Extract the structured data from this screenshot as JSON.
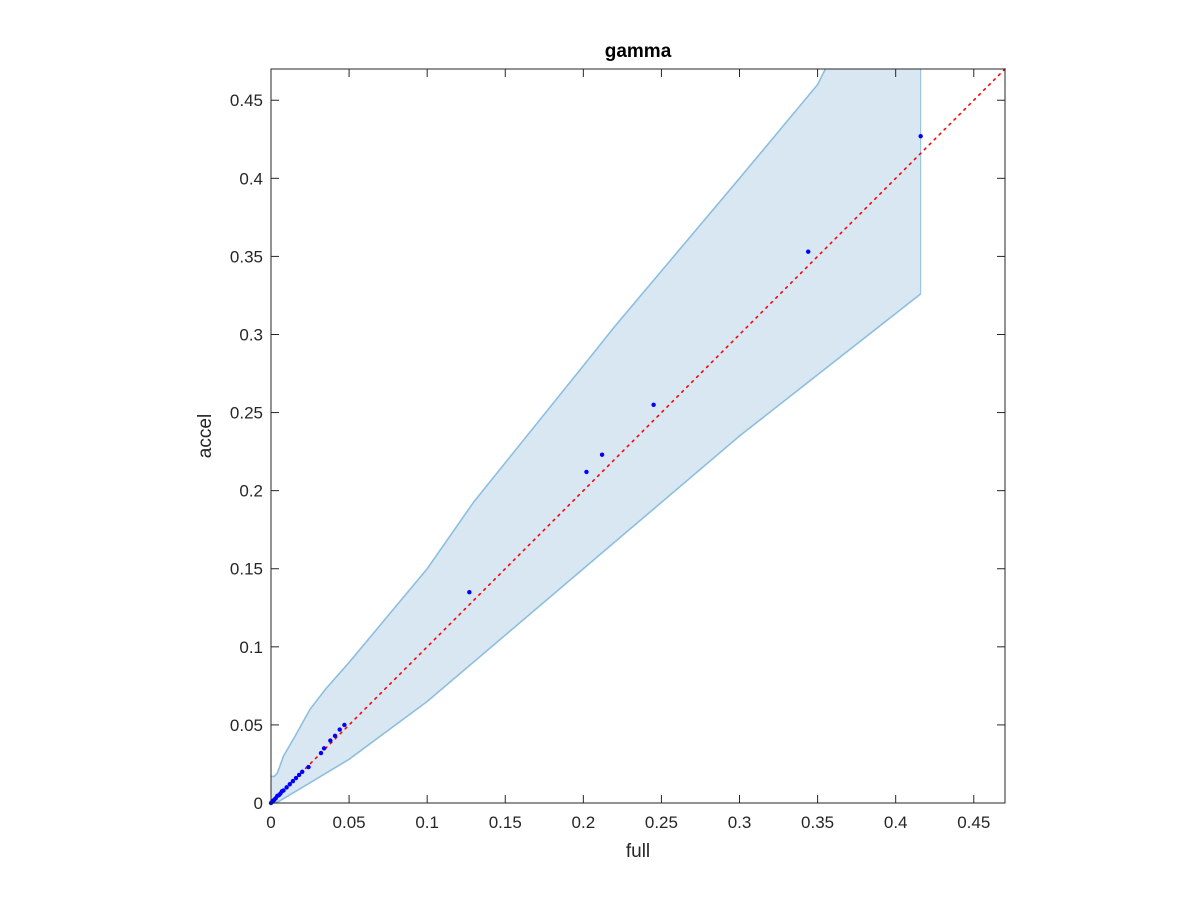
{
  "chart_data": {
    "type": "scatter",
    "title": "gamma",
    "xlabel": "full",
    "ylabel": "accel",
    "xlim": [
      0,
      0.47
    ],
    "ylim": [
      0,
      0.47
    ],
    "xticks": [
      0,
      0.05,
      0.1,
      0.15,
      0.2,
      0.25,
      0.3,
      0.35,
      0.4,
      0.45
    ],
    "yticks": [
      0,
      0.05,
      0.1,
      0.15,
      0.2,
      0.25,
      0.3,
      0.35,
      0.4,
      0.45
    ],
    "xtick_labels": [
      "0",
      "0.05",
      "0.1",
      "0.15",
      "0.2",
      "0.25",
      "0.3",
      "0.35",
      "0.4",
      "0.45"
    ],
    "ytick_labels": [
      "0",
      "0.05",
      "0.1",
      "0.15",
      "0.2",
      "0.25",
      "0.3",
      "0.35",
      "0.4",
      "0.45"
    ],
    "grid": false,
    "band": {
      "upper": [
        [
          0,
          0.017
        ],
        [
          0.002,
          0.017
        ],
        [
          0.004,
          0.019
        ],
        [
          0.008,
          0.03
        ],
        [
          0.015,
          0.042
        ],
        [
          0.025,
          0.06
        ],
        [
          0.035,
          0.073
        ],
        [
          0.05,
          0.09
        ],
        [
          0.1,
          0.15
        ],
        [
          0.13,
          0.193
        ],
        [
          0.2,
          0.28
        ],
        [
          0.22,
          0.305
        ],
        [
          0.3,
          0.4
        ],
        [
          0.35,
          0.46
        ],
        [
          0.355,
          0.47
        ]
      ],
      "lower": [
        [
          0,
          0
        ],
        [
          0.002,
          0
        ],
        [
          0.005,
          0.001
        ],
        [
          0.01,
          0.004
        ],
        [
          0.02,
          0.01
        ],
        [
          0.03,
          0.016
        ],
        [
          0.04,
          0.022
        ],
        [
          0.05,
          0.028
        ],
        [
          0.1,
          0.065
        ],
        [
          0.2,
          0.15
        ],
        [
          0.3,
          0.235
        ],
        [
          0.416,
          0.326
        ]
      ],
      "right_edge": [
        [
          0.416,
          0.326
        ],
        [
          0.416,
          0.47
        ]
      ],
      "fill_color": "#d9e7f3",
      "edge_color": "#8dbfde"
    },
    "reference_line": {
      "from": [
        0,
        0
      ],
      "to": [
        0.47,
        0.47
      ],
      "color": "#ff0000",
      "style": "dotted"
    },
    "points": {
      "color": "#0000ff",
      "x": [
        0,
        0.0005,
        0.001,
        0.0015,
        0.002,
        0.003,
        0.004,
        0.005,
        0.006,
        0.007,
        0.008,
        0.01,
        0.012,
        0.014,
        0.016,
        0.018,
        0.02,
        0.024,
        0.032,
        0.034,
        0.038,
        0.041,
        0.044,
        0.047,
        0.127,
        0.202,
        0.212,
        0.245,
        0.344,
        0.416
      ],
      "y": [
        0,
        0.0005,
        0.001,
        0.0015,
        0.002,
        0.003,
        0.0045,
        0.005,
        0.006,
        0.0075,
        0.008,
        0.01,
        0.012,
        0.014,
        0.016,
        0.018,
        0.02,
        0.023,
        0.032,
        0.035,
        0.04,
        0.043,
        0.047,
        0.05,
        0.135,
        0.212,
        0.223,
        0.255,
        0.353,
        0.427
      ]
    }
  }
}
